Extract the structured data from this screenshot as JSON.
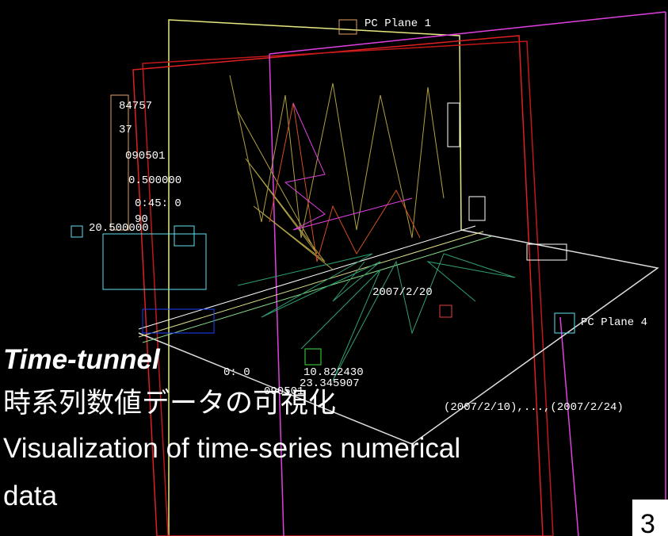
{
  "labels": {
    "plane_1": "PC Plane 1",
    "plane_4": "PC Plane 4",
    "readouts": [
      "84757",
      "37",
      "090501",
      "0.500000",
      "0:45: 0",
      "90",
      "20.500000"
    ],
    "date": "2007/2/20",
    "bottom": [
      "0: 0",
      "10.822430",
      "23.345907",
      "090501",
      "(2007/2/10),...,(2007/2/24)"
    ]
  },
  "slide": {
    "title": "Time-tunnel",
    "subtitle_ja": "時系列数値データの可視化",
    "subtitle_en_1": "Visualization of time-series numerical",
    "subtitle_en_2": "data",
    "page_number": "3"
  }
}
